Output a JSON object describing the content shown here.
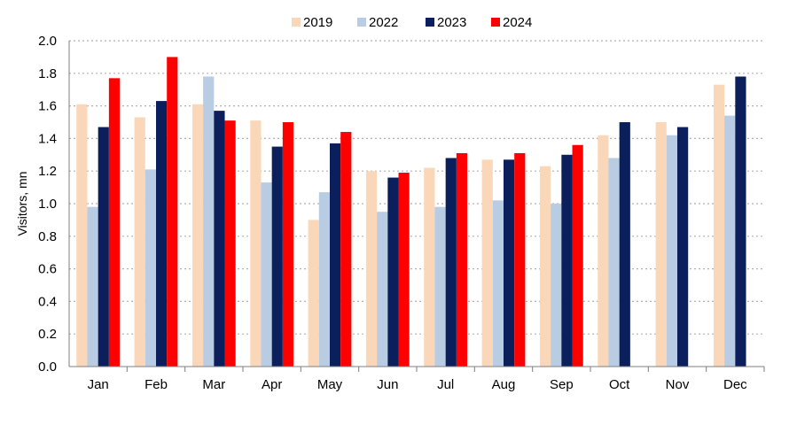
{
  "chart_data": {
    "type": "bar",
    "title": "",
    "xlabel": "",
    "ylabel": "Visitors, mn",
    "ylim": [
      0,
      2.0
    ],
    "yticks": [
      "0.0",
      "0.2",
      "0.4",
      "0.6",
      "0.8",
      "1.0",
      "1.2",
      "1.4",
      "1.6",
      "1.8",
      "2.0"
    ],
    "grid": "horizontal dotted",
    "legend_position": "top",
    "categories": [
      "Jan",
      "Feb",
      "Mar",
      "Apr",
      "May",
      "Jun",
      "Jul",
      "Aug",
      "Sep",
      "Oct",
      "Nov",
      "Dec"
    ],
    "series": [
      {
        "name": "2019",
        "color": "#FAD7B8",
        "values": [
          1.61,
          1.53,
          1.61,
          1.51,
          0.9,
          1.2,
          1.22,
          1.27,
          1.23,
          1.42,
          1.5,
          1.73
        ]
      },
      {
        "name": "2022",
        "color": "#B8CCE4",
        "values": [
          0.98,
          1.21,
          1.78,
          1.13,
          1.07,
          0.95,
          0.98,
          1.02,
          1.0,
          1.28,
          1.42,
          1.54
        ]
      },
      {
        "name": "2023",
        "color": "#0A1F5C",
        "values": [
          1.47,
          1.63,
          1.57,
          1.35,
          1.37,
          1.16,
          1.28,
          1.27,
          1.3,
          1.5,
          1.47,
          1.78
        ]
      },
      {
        "name": "2024",
        "color": "#FF0000",
        "values": [
          1.77,
          1.9,
          1.51,
          1.5,
          1.44,
          1.19,
          1.31,
          1.31,
          1.36,
          null,
          null,
          null
        ]
      }
    ]
  }
}
